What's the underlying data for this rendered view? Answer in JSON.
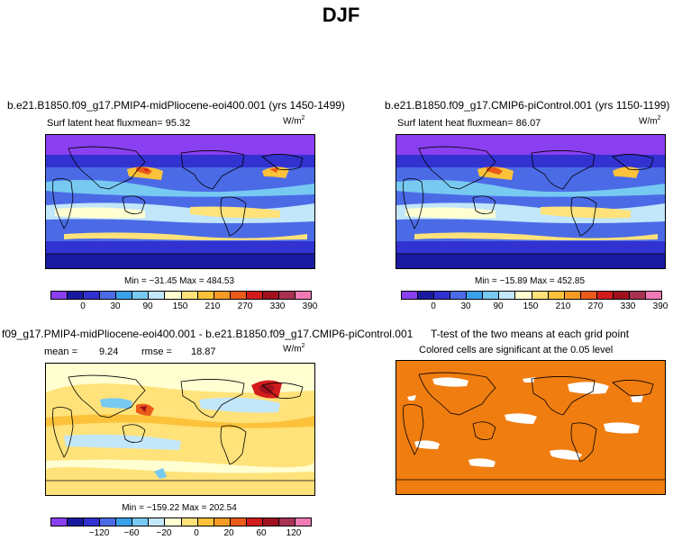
{
  "title": "DJF",
  "units_base": "W/m",
  "units_exp": "2",
  "colors": [
    "#8a3ff0",
    "#1a1aa0",
    "#3232d0",
    "#4b6be6",
    "#3aa0ea",
    "#77c9f2",
    "#c2e6fa",
    "#ffffd2",
    "#ffe27a",
    "#fcc23a",
    "#f59a25",
    "#ea5a18",
    "#d21c1c",
    "#a0101e",
    "#a83252",
    "#f07ab4"
  ],
  "panels": {
    "p1": {
      "title": "b.e21.B1850.f09_g17.PMIP4-midPliocene-eoi400.001 (yrs 1450-1499)",
      "subtitle": "Surf latent heat fluxmean=  95.32",
      "minmax": "Min = −31.45 Max = 484.53",
      "ticks": [
        "0",
        "30",
        "90",
        "150",
        "210",
        "270",
        "330",
        "390"
      ]
    },
    "p2": {
      "title": "b.e21.B1850.f09_g17.CMIP6-piControl.001 (yrs 1150-1199)",
      "subtitle": "Surf latent heat fluxmean=  86.07",
      "minmax": "Min = −15.89 Max = 452.85",
      "ticks": [
        "0",
        "30",
        "90",
        "150",
        "210",
        "270",
        "330",
        "390"
      ]
    },
    "p3": {
      "title": "f09_g17.PMIP4-midPliocene-eoi400.001 - b.e21.B1850.f09_g17.CMIP6-piControl.001",
      "mean_label": "mean =",
      "mean_value": "9.24",
      "rmse_label": "rmse =",
      "rmse_value": "18.87",
      "minmax": "Min = −159.22 Max = 202.54",
      "ticks": [
        "−120",
        "−60",
        "−20",
        "0",
        "20",
        "60",
        "120"
      ]
    },
    "p4": {
      "title": "T-test of the two means at each grid point",
      "subtitle": "Colored cells are significant at the 0.05 level"
    }
  }
}
